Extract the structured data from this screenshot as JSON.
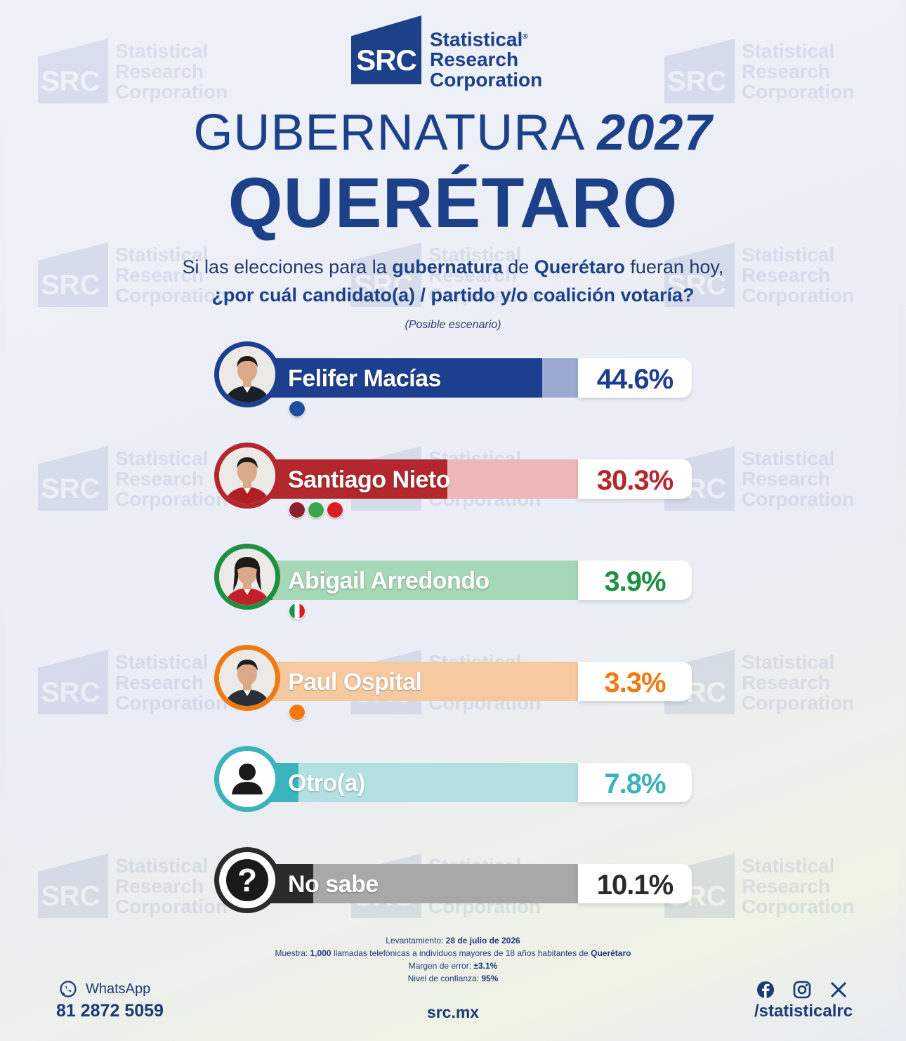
{
  "logo": {
    "mark": "SRC",
    "line1": "Statistical",
    "line2": "Research",
    "line3": "Corporation",
    "registered": "®"
  },
  "title": {
    "light": "GUBERNATURA",
    "year": "2027",
    "state": "QUERÉTARO"
  },
  "question": {
    "p1": "Si las elecciones para la ",
    "b1": "gubernatura",
    "p2": " de ",
    "b2": "Querétaro",
    "p3": " fueran hoy,",
    "line2": "¿por cuál candidato(a) / partido y/o coalición votaría?"
  },
  "scenario": "(Posible escenario)",
  "chart_data": {
    "type": "bar",
    "orientation": "horizontal",
    "categories": [
      "Felifer Macías",
      "Santiago Nieto",
      "Abigail Arredondo",
      "Paul Ospital",
      "Otro(a)",
      "No sabe"
    ],
    "values": [
      44.6,
      30.3,
      3.9,
      3.3,
      7.8,
      10.1
    ],
    "labels": [
      "44.6%",
      "30.3%",
      "3.9%",
      "3.3%",
      "7.8%",
      "10.1%"
    ],
    "colors": [
      "#1d3f8f",
      "#b3282d",
      "#1e8f44",
      "#f07a12",
      "#3bb3bd",
      "#2b2b2b"
    ],
    "light_colors": [
      "#9aaad2",
      "#eeb7b8",
      "#a6d7b6",
      "#f7c9a0",
      "#b3e0e3",
      "#a8a8a8"
    ],
    "parties": [
      [
        "PAN"
      ],
      [
        "morena",
        "VERDE",
        "PT"
      ],
      [
        "PRI"
      ],
      [
        "MC"
      ],
      [],
      []
    ],
    "xlim": [
      0,
      100
    ]
  },
  "footer": {
    "lev_label": "Levantamiento: ",
    "lev_value": "28 de julio de 2026",
    "muestra_label": "Muestra: ",
    "muestra_value": "1,000",
    "muestra_text": " llamadas telefónicas a individuos mayores de 18 años habitantes de ",
    "muestra_state": "Querétaro",
    "margen_label": "Margen de error: ",
    "margen_value": "±3.1%",
    "nivel_label": "Nivel de confianza: ",
    "nivel_value": "95%",
    "whatsapp": "WhatsApp",
    "phone": "81 2872 5059",
    "web": "src.mx",
    "handle": "/statisticalrc"
  }
}
